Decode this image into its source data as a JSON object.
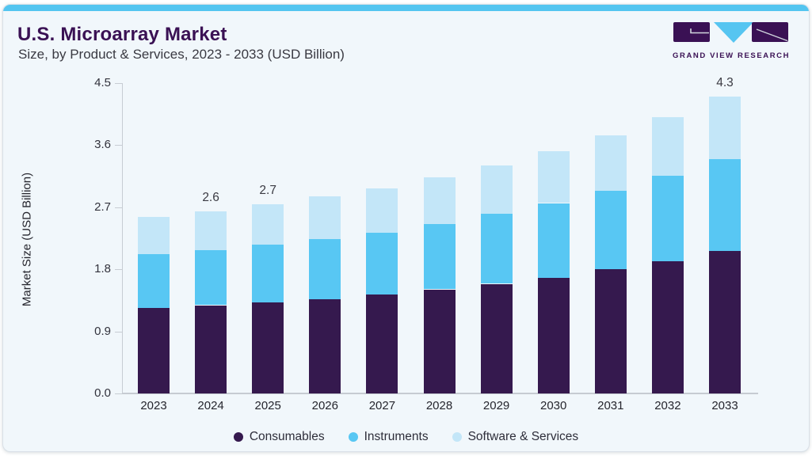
{
  "page": {
    "title": "U.S. Microarray Market",
    "subtitle": "Size, by Product & Services, 2023 - 2033 (USD Billion)"
  },
  "logo": {
    "name": "grand-view-research-logo",
    "text": "GRAND VIEW RESEARCH"
  },
  "colors": {
    "accent_strip": "#54c5f0",
    "title_purple": "#3a1154",
    "card_bg": "#f1f7fb",
    "consumables": "#35194e",
    "instruments": "#58c7f3",
    "software_services": "#c3e6f8",
    "logo_triangle": "#56c5f1"
  },
  "chart_data": {
    "type": "bar",
    "stacked": true,
    "title": "U.S. Microarray Market Size, by Product & Services, 2023 - 2033 (USD Billion)",
    "xlabel": "",
    "ylabel": "Market Size (USD Billion)",
    "ylim": [
      0,
      4.5
    ],
    "ytick_labels": [
      "0.0",
      "0.9",
      "1.8",
      "2.7",
      "3.6",
      "4.5"
    ],
    "grid": false,
    "legend_position": "bottom",
    "categories": [
      "2023",
      "2024",
      "2025",
      "2026",
      "2027",
      "2028",
      "2029",
      "2030",
      "2031",
      "2032",
      "2033"
    ],
    "series": [
      {
        "name": "Consumables",
        "color": "#35194e",
        "values": [
          1.24,
          1.28,
          1.32,
          1.37,
          1.44,
          1.51,
          1.59,
          1.68,
          1.8,
          1.92,
          2.07
        ]
      },
      {
        "name": "Instruments",
        "color": "#58c7f3",
        "values": [
          0.78,
          0.8,
          0.84,
          0.87,
          0.89,
          0.95,
          1.02,
          1.08,
          1.14,
          1.24,
          1.33
        ]
      },
      {
        "name": "Software & Services",
        "color": "#c3e6f8",
        "values": [
          0.54,
          0.56,
          0.58,
          0.62,
          0.64,
          0.67,
          0.7,
          0.75,
          0.8,
          0.85,
          0.91
        ]
      }
    ],
    "totals": [
      2.56,
      2.64,
      2.74,
      2.86,
      2.97,
      3.13,
      3.31,
      3.51,
      3.74,
      4.01,
      4.31
    ],
    "total_labels": {
      "2024": "2.6",
      "2025": "2.7",
      "2033": "4.3"
    }
  }
}
